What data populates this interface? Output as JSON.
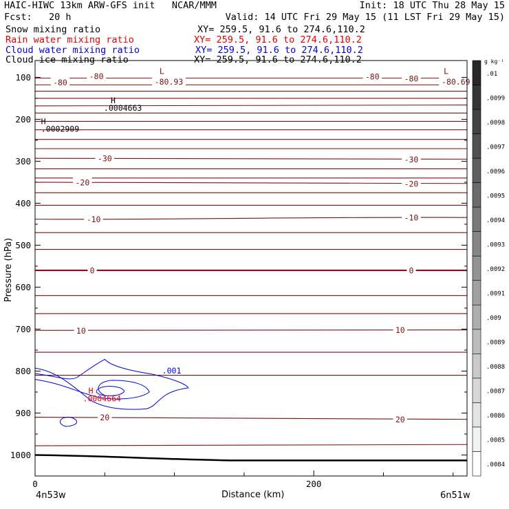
{
  "header": {
    "title": "HAIC-HIWC 13km ARW-GFS init   NCAR/MMM",
    "init": "Init: 18 UTC Thu 28 May 15",
    "fcst": "Fcst:   20 h",
    "valid": "Valid: 14 UTC Fri 29 May 15 (11 LST Fri 29 May 15)",
    "colors": {
      "black": "#000000",
      "red": "#e00000",
      "blue": "#0000dd",
      "maroon": "#7a1010"
    },
    "fields": [
      {
        "name": "Snow mixing ratio",
        "xy": "XY= 259.5, 91.6 to 274.6,110.2",
        "color": "black"
      },
      {
        "name": "Rain water mixing ratio",
        "xy": "XY= 259.5, 91.6 to 274.6,110.2",
        "color": "red"
      },
      {
        "name": "Cloud water mixing ratio",
        "xy": "XY= 259.5, 91.6 to 274.6,110.2",
        "color": "blue"
      },
      {
        "name": "Cloud ice mixing ratio",
        "xy": "XY= 259.5, 91.6 to 274.6,110.2",
        "color": "black"
      }
    ]
  },
  "chart_data": {
    "type": "contour",
    "ylabel": "Pressure (hPa)",
    "xlabel": "Distance (km)",
    "x_endpoints": [
      "4n53w",
      "6n51w"
    ],
    "xlim": [
      0,
      310
    ],
    "ylim": [
      1050,
      60
    ],
    "x_ticks": [
      0,
      200
    ],
    "y_ticks": [
      100,
      200,
      300,
      400,
      500,
      600,
      700,
      800,
      900,
      1000
    ],
    "colorbar": {
      "unit": "g kg⁻¹",
      "labels": [
        ".01",
        ".0099",
        ".0098",
        ".0097",
        ".0096",
        ".0095",
        ".0094",
        ".0093",
        ".0092",
        ".0091",
        ".009",
        ".0089",
        ".0088",
        ".0087",
        ".0086",
        ".0085",
        ".0084"
      ]
    },
    "temperature_labels": [
      {
        "text": "-80",
        "x": 18,
        "p": 112
      },
      {
        "text": "-80",
        "x": 44,
        "p": 97
      },
      {
        "text": "-80",
        "x": 242,
        "p": 98
      },
      {
        "text": "-80",
        "x": 270,
        "p": 103
      },
      {
        "text": "-80.93",
        "x": 96,
        "p": 110
      },
      {
        "text": "-80.69",
        "x": 302,
        "p": 110
      },
      {
        "text": "-30",
        "x": 50,
        "p": 293
      },
      {
        "text": "-30",
        "x": 270,
        "p": 295
      },
      {
        "text": "-20",
        "x": 34,
        "p": 350
      },
      {
        "text": "-20",
        "x": 270,
        "p": 353
      },
      {
        "text": "-10",
        "x": 42,
        "p": 438
      },
      {
        "text": "-10",
        "x": 270,
        "p": 434
      },
      {
        "text": "0",
        "x": 41,
        "p": 560
      },
      {
        "text": "0",
        "x": 270,
        "p": 560
      },
      {
        "text": "10",
        "x": 33,
        "p": 703
      },
      {
        "text": "10",
        "x": 262,
        "p": 702
      },
      {
        "text": "20",
        "x": 50,
        "p": 910
      },
      {
        "text": "20",
        "x": 262,
        "p": 915
      }
    ],
    "extrema_labels": [
      {
        "text": "L",
        "x": 91,
        "p": 92,
        "color": "maroon"
      },
      {
        "text": "L",
        "x": 295,
        "p": 92,
        "color": "maroon"
      },
      {
        "text": "H",
        "x": 56,
        "p": 162,
        "color": "black"
      },
      {
        "text": ".0004663",
        "x": 63,
        "p": 180,
        "color": "black"
      },
      {
        "text": "H",
        "x": 6,
        "p": 212,
        "color": "black"
      },
      {
        "text": ".0002909",
        "x": 18,
        "p": 230,
        "color": "black"
      },
      {
        "text": "H",
        "x": 40,
        "p": 853,
        "color": "red"
      },
      {
        "text": ".0004664",
        "x": 48,
        "p": 872,
        "color": "red"
      },
      {
        "text": ".001",
        "x": 98,
        "p": 806,
        "color": "blue"
      }
    ],
    "isotherms_hpa_at_left_right": [
      [
        102,
        102
      ],
      [
        118,
        118
      ],
      [
        133,
        133
      ],
      [
        150,
        150
      ],
      [
        168,
        166
      ],
      [
        185,
        185
      ],
      [
        205,
        205
      ],
      [
        225,
        225
      ],
      [
        248,
        248
      ],
      [
        270,
        270
      ],
      [
        293,
        295
      ],
      [
        318,
        318
      ],
      [
        340,
        340
      ],
      [
        350,
        353
      ],
      [
        375,
        375
      ],
      [
        405,
        405
      ],
      [
        438,
        434
      ],
      [
        470,
        470
      ],
      [
        510,
        510
      ],
      [
        560,
        560
      ],
      [
        620,
        620
      ],
      [
        663,
        663
      ],
      [
        703,
        702
      ],
      [
        755,
        755
      ],
      [
        810,
        810
      ],
      [
        910,
        915
      ],
      [
        978,
        975
      ]
    ]
  }
}
